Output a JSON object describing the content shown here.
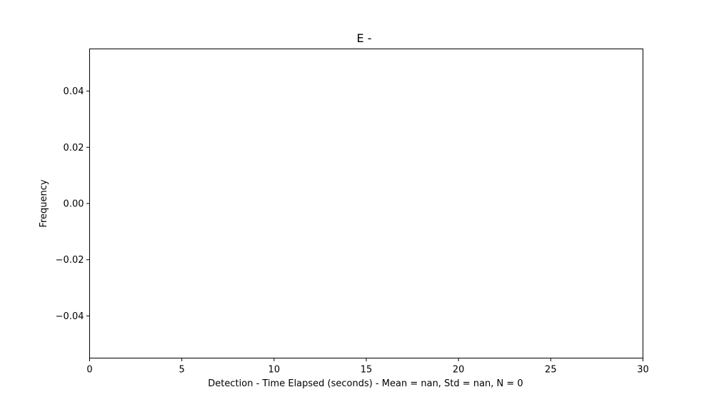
{
  "chart_data": {
    "type": "bar",
    "title": "E -",
    "xlabel": "Detection - Time Elapsed (seconds) - Mean = nan, Std = nan, N = 0",
    "ylabel": "Frequency",
    "xlim": [
      0,
      30
    ],
    "ylim": [
      -0.055,
      0.055
    ],
    "xticks": [
      0,
      5,
      10,
      15,
      20,
      25,
      30
    ],
    "xtick_labels": [
      "0",
      "5",
      "10",
      "15",
      "20",
      "25",
      "30"
    ],
    "yticks": [
      0.04,
      0.02,
      0.0,
      -0.02,
      -0.04
    ],
    "ytick_labels": [
      "0.04",
      "0.02",
      "0.00",
      "−0.02",
      "−0.04"
    ],
    "bins": [],
    "values": [],
    "grid": false,
    "legend": null
  }
}
